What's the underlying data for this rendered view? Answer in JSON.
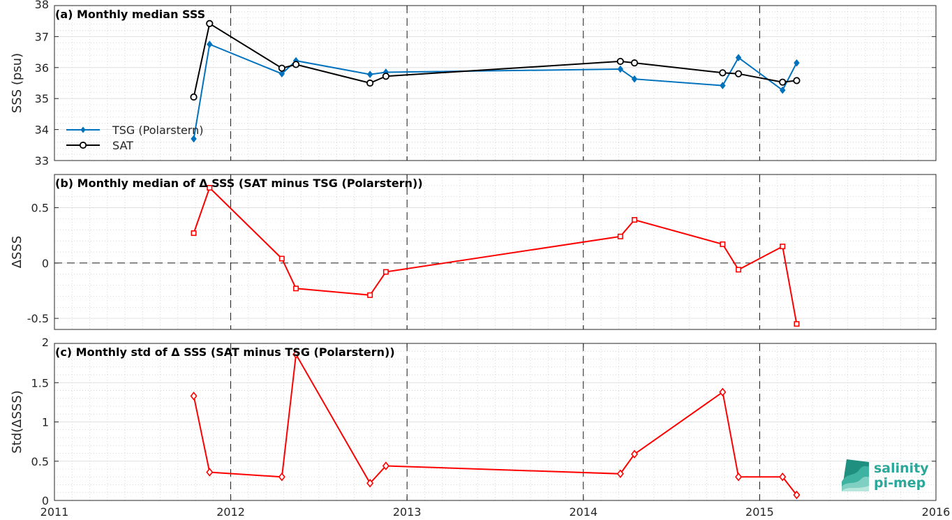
{
  "chart_data": [
    {
      "type": "line",
      "title": "(a) Monthly median SSS",
      "ylabel": "SSS (psu)",
      "xlim": [
        2011,
        2016
      ],
      "ylim": [
        33,
        38
      ],
      "yticks": [
        33,
        34,
        35,
        36,
        37,
        38
      ],
      "grid": "minor-dotted",
      "legend_position": "bottom-left",
      "series": [
        {
          "name": "TSG (Polarstern)",
          "color": "#0072BD",
          "marker": "diamond-filled",
          "x": [
            2011.79,
            2011.88,
            2012.29,
            2012.37,
            2012.79,
            2012.88,
            2014.21,
            2014.29,
            2014.79,
            2014.88,
            2015.13,
            2015.21
          ],
          "values": [
            33.7,
            36.75,
            35.8,
            36.22,
            35.78,
            35.85,
            35.95,
            35.63,
            35.42,
            36.32,
            35.27,
            36.15
          ]
        },
        {
          "name": "SAT",
          "color": "#000000",
          "marker": "circle-open",
          "x": [
            2011.79,
            2011.88,
            2012.29,
            2012.37,
            2012.79,
            2012.88,
            2014.21,
            2014.29,
            2014.79,
            2014.88,
            2015.13,
            2015.21
          ],
          "values": [
            35.05,
            37.42,
            35.98,
            36.1,
            35.5,
            35.72,
            36.2,
            36.15,
            35.83,
            35.8,
            35.53,
            35.58
          ]
        }
      ]
    },
    {
      "type": "line",
      "title": "(b) Monthly median of Δ SSS (SAT minus TSG (Polarstern))",
      "ylabel": "ΔSSS",
      "xlim": [
        2011,
        2016
      ],
      "ylim": [
        -0.6,
        0.8
      ],
      "yticks": [
        -0.5,
        0,
        0.5
      ],
      "ytick_labels": [
        "-0.5",
        "0",
        "0.5"
      ],
      "zero_line": "dashed",
      "grid": "minor-dotted",
      "series": [
        {
          "color": "#FF0000",
          "marker": "square-open",
          "x": [
            2011.79,
            2011.88,
            2012.29,
            2012.37,
            2012.79,
            2012.88,
            2014.21,
            2014.29,
            2014.79,
            2014.88,
            2015.13,
            2015.21
          ],
          "values": [
            0.27,
            0.68,
            0.04,
            -0.23,
            -0.29,
            -0.08,
            0.24,
            0.39,
            0.17,
            -0.06,
            0.15,
            -0.55
          ]
        }
      ]
    },
    {
      "type": "line",
      "title": "(c) Monthly std of Δ SSS (SAT minus TSG (Polarstern))",
      "ylabel": "Std(ΔSSS)",
      "xlabel": "",
      "xlim": [
        2011,
        2016
      ],
      "ylim": [
        0,
        2
      ],
      "yticks": [
        0,
        0.5,
        1,
        1.5,
        2
      ],
      "ytick_labels": [
        "0",
        "0.5",
        "1",
        "1.5",
        "2"
      ],
      "xticks": [
        2011,
        2012,
        2013,
        2014,
        2015,
        2016
      ],
      "xtick_labels": [
        "2011",
        "2012",
        "2013",
        "2014",
        "2015",
        "2016"
      ],
      "grid": "minor-dotted",
      "series": [
        {
          "color": "#FF0000",
          "marker": "diamond-open",
          "x": [
            2011.79,
            2011.88,
            2012.29,
            2012.37,
            2012.79,
            2012.88,
            2014.21,
            2014.29,
            2014.79,
            2014.88,
            2015.13,
            2015.21
          ],
          "values": [
            1.33,
            0.36,
            0.3,
            1.86,
            0.22,
            0.44,
            0.34,
            0.59,
            1.38,
            0.3,
            0.3,
            0.07
          ]
        }
      ]
    }
  ],
  "logo": {
    "line1": "salinity",
    "line2": "pi-mep",
    "color": "#2aa89a"
  }
}
